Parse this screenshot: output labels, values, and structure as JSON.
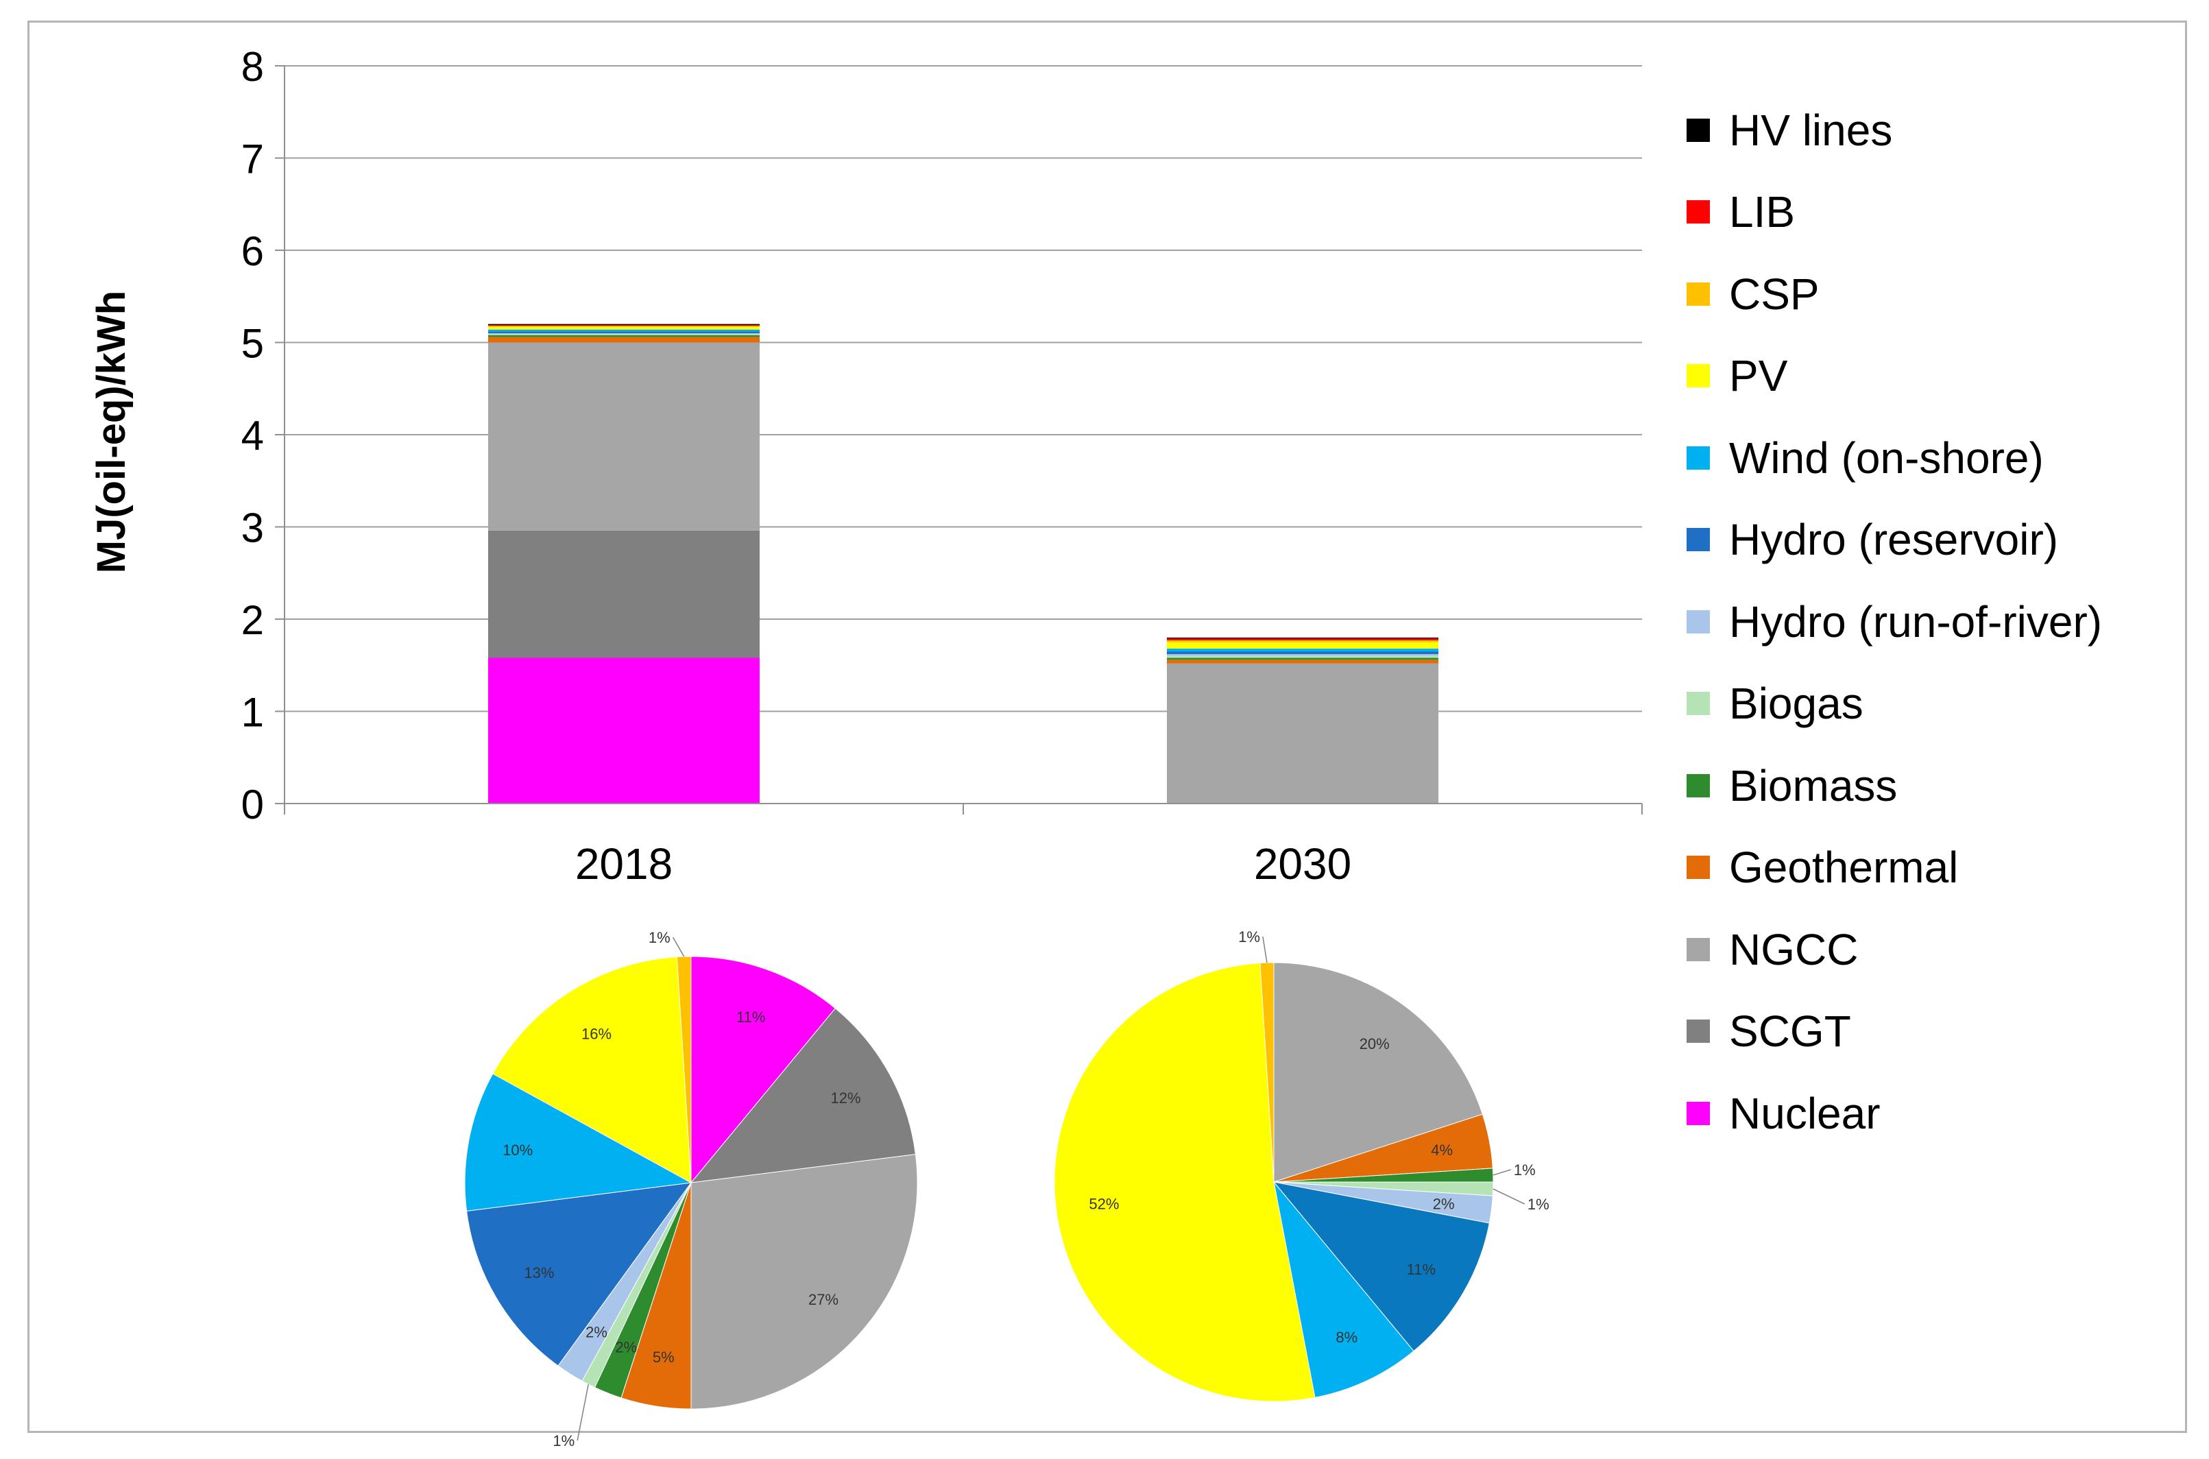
{
  "chart_data": [
    {
      "type": "bar",
      "stacked": true,
      "ylabel": "MJ(oil-eq)/kWh",
      "ylim": [
        0,
        8
      ],
      "yticks": [
        "0",
        "1",
        "2",
        "3",
        "4",
        "5",
        "6",
        "7",
        "8"
      ],
      "grid": true,
      "categories": [
        "2018",
        "2030"
      ],
      "series": [
        {
          "name": "Nuclear",
          "color": "#FF00FF",
          "values": [
            1.58,
            0.0
          ]
        },
        {
          "name": "SCGT",
          "color": "#808080",
          "values": [
            1.38,
            0.0
          ]
        },
        {
          "name": "NGCC",
          "color": "#A6A6A6",
          "values": [
            2.04,
            1.52
          ]
        },
        {
          "name": "Geothermal",
          "color": "#E36C09",
          "values": [
            0.06,
            0.04
          ]
        },
        {
          "name": "Biomass",
          "color": "#2E8B2E",
          "values": [
            0.02,
            0.02
          ]
        },
        {
          "name": "Biogas",
          "color": "#B5E3B5",
          "values": [
            0.01,
            0.02
          ]
        },
        {
          "name": "Hydro (run-of-river)",
          "color": "#A9C6EA",
          "values": [
            0.01,
            0.02
          ]
        },
        {
          "name": "Hydro (reservoir)",
          "color": "#1F6FC5",
          "values": [
            0.02,
            0.03
          ]
        },
        {
          "name": "Wind (on-shore)",
          "color": "#00B0F0",
          "values": [
            0.02,
            0.03
          ]
        },
        {
          "name": "PV",
          "color": "#FFFF00",
          "values": [
            0.03,
            0.07
          ]
        },
        {
          "name": "CSP",
          "color": "#FFC000",
          "values": [
            0.01,
            0.02
          ]
        },
        {
          "name": "LIB",
          "color": "#FF0000",
          "values": [
            0.01,
            0.02
          ]
        },
        {
          "name": "HV lines",
          "color": "#000000",
          "values": [
            0.01,
            0.01
          ]
        }
      ],
      "legend": "right"
    },
    {
      "type": "pie",
      "category": "2018",
      "slices": [
        {
          "series": "Nuclear",
          "color": "#FF00FF",
          "value": 11,
          "label": "11%"
        },
        {
          "series": "SCGT",
          "color": "#808080",
          "value": 12,
          "label": "12%"
        },
        {
          "series": "NGCC",
          "color": "#A6A6A6",
          "value": 27,
          "label": "27%"
        },
        {
          "series": "Geothermal",
          "color": "#E36C09",
          "value": 5,
          "label": "5%"
        },
        {
          "series": "Biomass",
          "color": "#2E8B2E",
          "value": 2,
          "label": "2%"
        },
        {
          "series": "Biogas",
          "color": "#B5E3B5",
          "value": 1,
          "label": "1%"
        },
        {
          "series": "Hydro (run-of-river)",
          "color": "#A9C6EA",
          "value": 2,
          "label": "2%"
        },
        {
          "series": "Hydro (reservoir)",
          "color": "#1F6FC5",
          "value": 13,
          "label": "13%"
        },
        {
          "series": "Wind (on-shore)",
          "color": "#00B0F0",
          "value": 10,
          "label": "10%"
        },
        {
          "series": "PV",
          "color": "#FFFF00",
          "value": 16,
          "label": "16%"
        },
        {
          "series": "CSP",
          "color": "#FFC000",
          "value": 1,
          "label": "1%"
        }
      ]
    },
    {
      "type": "pie",
      "category": "2030",
      "slices": [
        {
          "series": "NGCC",
          "color": "#A6A6A6",
          "value": 20,
          "label": "20%"
        },
        {
          "series": "Geothermal",
          "color": "#E36C09",
          "value": 4,
          "label": "4%"
        },
        {
          "series": "Biomass",
          "color": "#2E8B2E",
          "value": 1,
          "label": "1%"
        },
        {
          "series": "Biogas",
          "color": "#B5E3B5",
          "value": 1,
          "label": "1%"
        },
        {
          "series": "Hydro (run-of-river)",
          "color": "#A9C6EA",
          "value": 2,
          "label": "2%"
        },
        {
          "series": "Hydro (reservoir)",
          "color": "#0A78BE",
          "value": 11,
          "label": "11%"
        },
        {
          "series": "Wind (on-shore)",
          "color": "#00B0F0",
          "value": 8,
          "label": "8%"
        },
        {
          "series": "PV",
          "color": "#FFFF00",
          "value": 52,
          "label": "52%"
        },
        {
          "series": "CSP",
          "color": "#FFC000",
          "value": 1,
          "label": "1%"
        }
      ]
    }
  ]
}
